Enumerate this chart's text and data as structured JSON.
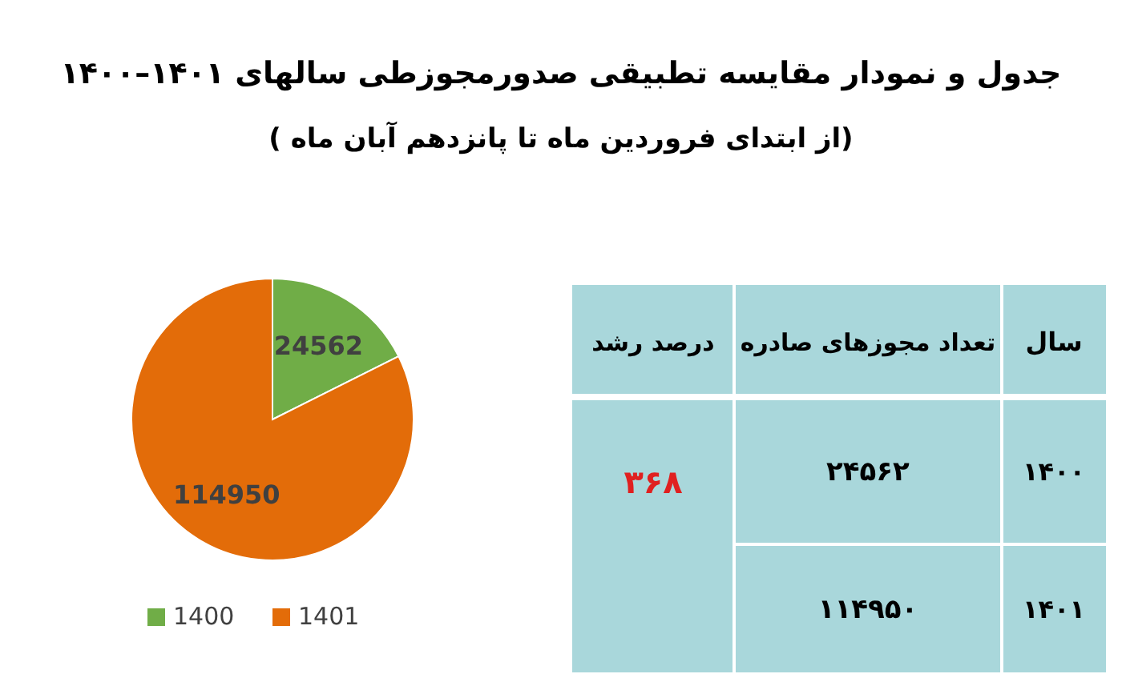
{
  "chart_data": [
    {
      "type": "pie",
      "title": "جدول و نمودار مقایسه تطبیقی صدورمجوزطی سالهای ۱۴۰۱–۱۴۰۰",
      "subtitle": "(از ابتدای فروردین  ماه تا پانزدهم آبان ماه )",
      "categories": [
        "1400",
        "1401"
      ],
      "values": [
        24562,
        114950
      ],
      "colors": [
        "#70ad47",
        "#e36c09"
      ],
      "data_labels": true,
      "legend": "bottom"
    },
    {
      "type": "other",
      "annotations": [
        "سال",
        "تعداد مجوزهای صادره",
        "درصد رشد",
        "۱۴۰۰",
        "۲۴۵۶۲",
        "۱۴۰۱",
        "۱۱۴۹۵۰",
        "۳۶۸"
      ]
    }
  ]
}
